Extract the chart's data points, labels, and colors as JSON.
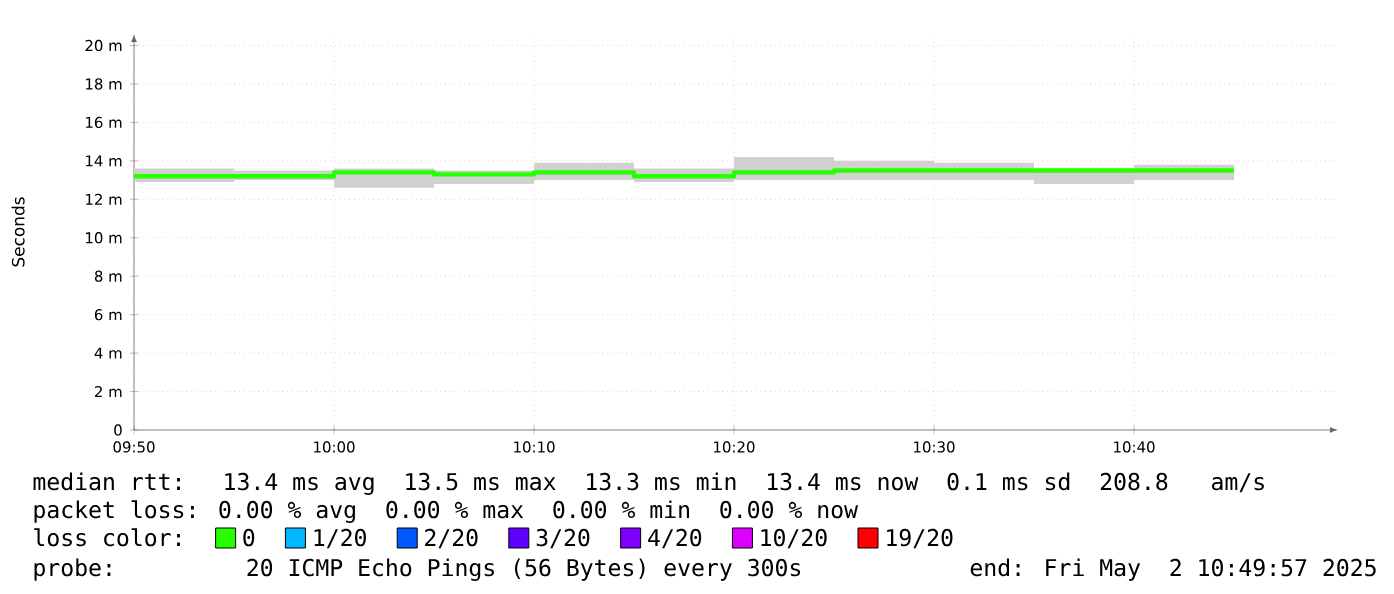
{
  "chart_data": {
    "type": "step",
    "ylabel": "Seconds",
    "x": [
      9.8333,
      9.9167,
      10.0,
      10.0833,
      10.1667,
      10.25,
      10.3333,
      10.4167,
      10.5,
      10.5833,
      10.6667,
      10.75
    ],
    "series": [
      {
        "name": "0",
        "color": "#26ff00",
        "values": [
          13.2,
          13.2,
          13.4,
          13.3,
          13.4,
          13.2,
          13.4,
          13.5,
          13.5,
          13.5,
          13.5,
          13.5
        ],
        "lower": [
          12.9,
          13.0,
          12.6,
          12.8,
          13.0,
          12.9,
          13.0,
          13.0,
          13.0,
          12.8,
          13.0,
          13.0
        ],
        "upper": [
          13.6,
          13.5,
          13.6,
          13.5,
          13.9,
          13.6,
          14.2,
          14.0,
          13.9,
          13.6,
          13.8,
          13.8
        ]
      },
      {
        "name": "1/20",
        "color": "#00b8ff",
        "values": [
          null,
          null,
          null,
          null,
          null,
          null,
          null,
          null,
          null,
          null,
          null,
          null
        ]
      },
      {
        "name": "2/20",
        "color": "#0059ff",
        "values": [
          null,
          null,
          null,
          null,
          null,
          null,
          null,
          null,
          null,
          null,
          null,
          null
        ]
      },
      {
        "name": "3/20",
        "color": "#5e00ff",
        "values": [
          null,
          null,
          null,
          null,
          null,
          null,
          null,
          null,
          null,
          null,
          null,
          null
        ]
      },
      {
        "name": "4/20",
        "color": "#7e00ff",
        "values": [
          null,
          null,
          null,
          null,
          null,
          null,
          null,
          null,
          null,
          null,
          null,
          null
        ]
      },
      {
        "name": "10/20",
        "color": "#dd00ff",
        "values": [
          null,
          null,
          null,
          null,
          null,
          null,
          null,
          null,
          null,
          null,
          null,
          null
        ]
      },
      {
        "name": "19/20",
        "color": "#ff0000",
        "values": [
          null,
          null,
          null,
          null,
          null,
          null,
          null,
          null,
          null,
          null,
          null,
          null
        ]
      }
    ],
    "legend": "bottom",
    "legend_title": "loss color:",
    "xlim": [
      9.8333,
      10.8367
    ],
    "ylim": [
      0,
      20
    ],
    "xticks": [
      {
        "value": 9.8333,
        "label": "09:50"
      },
      {
        "value": 10.0,
        "label": "10:00"
      },
      {
        "value": 10.1667,
        "label": "10:10"
      },
      {
        "value": 10.3333,
        "label": "10:20"
      },
      {
        "value": 10.5,
        "label": "10:30"
      },
      {
        "value": 10.6667,
        "label": "10:40"
      }
    ],
    "yticks": [
      0,
      {
        "value": 2,
        "label": "2 m"
      },
      {
        "value": 4,
        "label": "4 m"
      },
      {
        "value": 6,
        "label": "6 m"
      },
      {
        "value": 8,
        "label": "8 m"
      },
      {
        "value": 10,
        "label": "10 m"
      },
      {
        "value": 12,
        "label": "12 m"
      },
      {
        "value": 14,
        "label": "14 m"
      },
      {
        "value": 16,
        "label": "16 m"
      },
      {
        "value": 18,
        "label": "18 m"
      },
      {
        "value": 20,
        "label": "20 m"
      }
    ],
    "grid": true,
    "annotations": [
      "median rtt:  13.4 ms avg  13.5 ms max  13.3 ms min  13.4 ms now  0.1 ms sd  208.8   am/s",
      "packet loss: 0.00 % avg  0.00 % max  0.00 % min  0.00 % now",
      "probe:       20 ICMP Echo Pings (56 Bytes) every 300s            end: Fri May  2 10:49:57 2025"
    ]
  }
}
